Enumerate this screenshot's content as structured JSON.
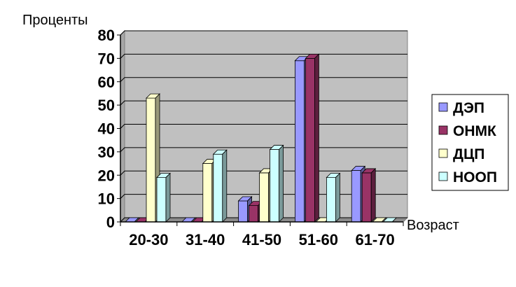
{
  "chart_data": {
    "type": "bar",
    "ylabel": "Проценты",
    "xlabel": "Возраст",
    "categories": [
      "20-30",
      "31-40",
      "41-50",
      "51-60",
      "61-70"
    ],
    "ylim": [
      0,
      80
    ],
    "yticks": [
      "0",
      "10",
      "20",
      "30",
      "40",
      "50",
      "60",
      "70",
      "80"
    ],
    "grid": true,
    "legend_position": "right",
    "series": [
      {
        "name": "ДЭП",
        "color": "#9999ff",
        "values": [
          0,
          0,
          9,
          69,
          22
        ]
      },
      {
        "name": "ОНМК",
        "color": "#993366",
        "values": [
          0,
          0,
          7,
          70,
          21
        ]
      },
      {
        "name": "ДЦП",
        "color": "#ffffcc",
        "values": [
          53,
          25,
          21,
          0,
          0
        ]
      },
      {
        "name": "НООП",
        "color": "#ccffff",
        "values": [
          19,
          29,
          31,
          19,
          0
        ]
      }
    ]
  }
}
